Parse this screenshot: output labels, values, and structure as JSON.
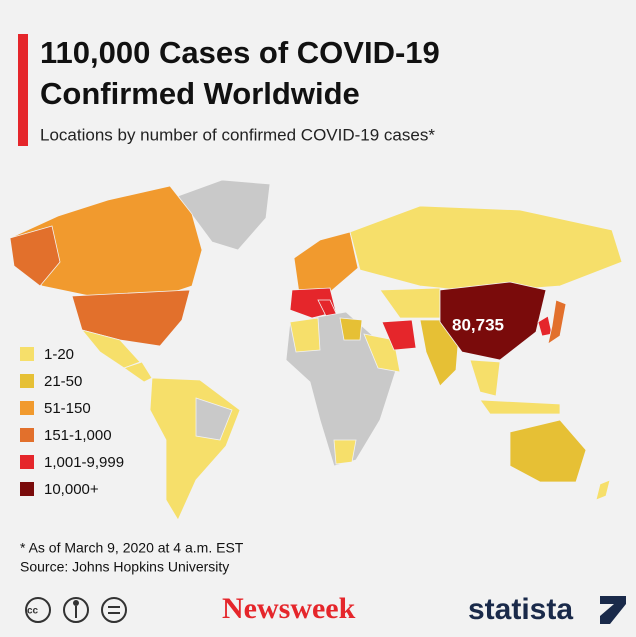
{
  "header": {
    "title_lines": [
      "110,000 Cases of COVID-19",
      "Confirmed Worldwide"
    ],
    "subtitle": "Locations by number of confirmed COVID-19 cases*"
  },
  "map": {
    "legend": [
      {
        "label": "1-20",
        "color": "#f6df6a"
      },
      {
        "label": "21-50",
        "color": "#e6c035"
      },
      {
        "label": "51-150",
        "color": "#f19a2e"
      },
      {
        "label": "151-1,000",
        "color": "#e2702c"
      },
      {
        "label": "1,001-9,999",
        "color": "#e5262b"
      },
      {
        "label": "10,000+",
        "color": "#7a0b0b"
      }
    ],
    "annotations": [
      {
        "text": "80,735"
      }
    ]
  },
  "footer": {
    "note": "* As of March 9, 2020 at 4 a.m. EST",
    "source": "Source: Johns Hopkins University",
    "publisher": "Newsweek",
    "brand": "statista"
  }
}
